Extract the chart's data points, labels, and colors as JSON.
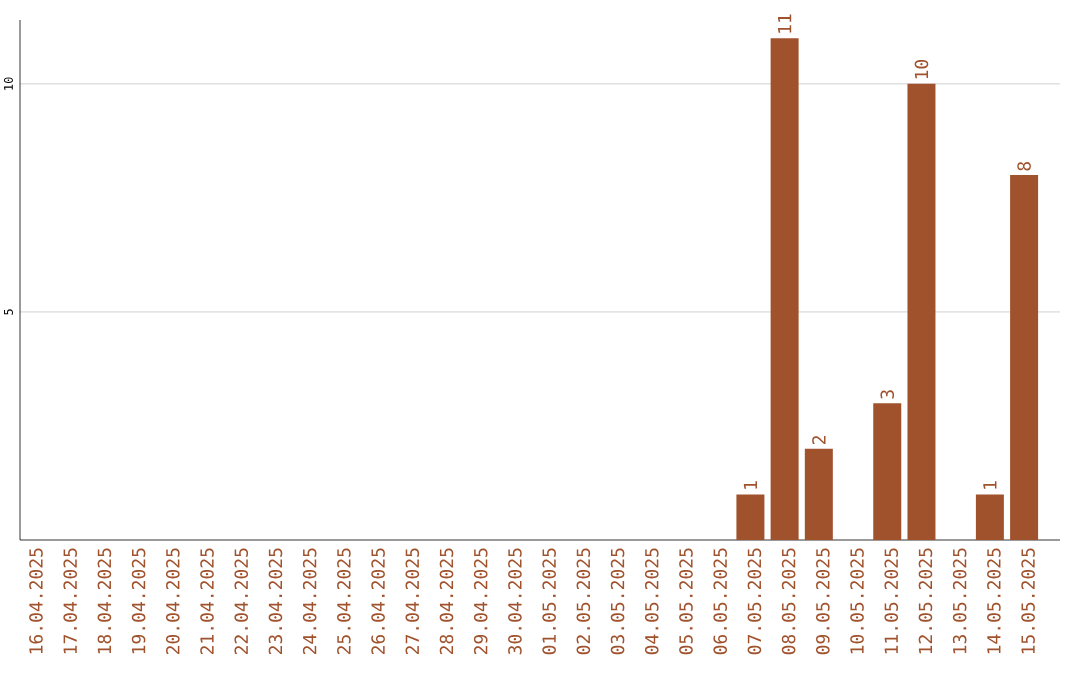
{
  "chart_data": {
    "type": "bar",
    "categories": [
      "16.04.2025",
      "17.04.2025",
      "18.04.2025",
      "19.04.2025",
      "20.04.2025",
      "21.04.2025",
      "22.04.2025",
      "23.04.2025",
      "24.04.2025",
      "25.04.2025",
      "26.04.2025",
      "27.04.2025",
      "28.04.2025",
      "29.04.2025",
      "30.04.2025",
      "01.05.2025",
      "02.05.2025",
      "03.05.2025",
      "04.05.2025",
      "05.05.2025",
      "06.05.2025",
      "07.05.2025",
      "08.05.2025",
      "09.05.2025",
      "10.05.2025",
      "11.05.2025",
      "12.05.2025",
      "13.05.2025",
      "14.05.2025",
      "15.05.2025"
    ],
    "values": [
      0,
      0,
      0,
      0,
      0,
      0,
      0,
      0,
      0,
      0,
      0,
      0,
      0,
      0,
      0,
      0,
      0,
      0,
      0,
      0,
      0,
      1,
      11,
      2,
      0,
      3,
      10,
      0,
      1,
      8
    ],
    "value_labels": [
      null,
      null,
      null,
      null,
      null,
      null,
      null,
      null,
      null,
      null,
      null,
      null,
      null,
      null,
      null,
      null,
      null,
      null,
      null,
      null,
      null,
      "1",
      "11",
      "2",
      null,
      "3",
      "10",
      null,
      "1",
      "8"
    ],
    "color": "#a0522d",
    "ylim": [
      0,
      11.4
    ],
    "yticks": [
      5,
      10
    ],
    "grid": "y"
  }
}
